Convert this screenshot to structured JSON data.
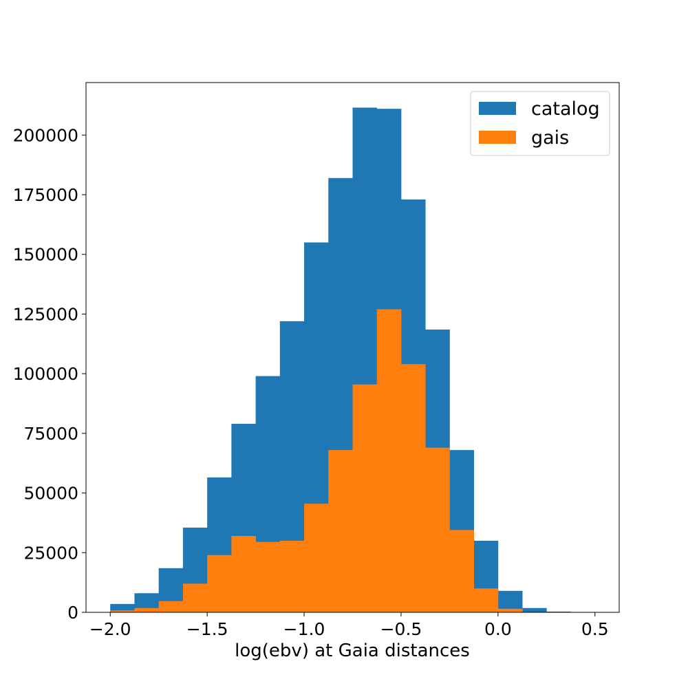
{
  "chart_data": {
    "type": "bar",
    "title": "",
    "xlabel": "log(ebv) at Gaia distances",
    "ylabel": "",
    "xlim": [
      -2.125,
      0.625
    ],
    "ylim": [
      0,
      222000
    ],
    "x_ticks": [
      -2.0,
      -1.5,
      -1.0,
      -0.5,
      0.0,
      0.5
    ],
    "x_tick_labels": [
      "−2.0",
      "−1.5",
      "−1.0",
      "−0.5",
      "0.0",
      "0.5"
    ],
    "y_ticks": [
      0,
      25000,
      50000,
      75000,
      100000,
      125000,
      150000,
      175000,
      200000
    ],
    "y_tick_labels": [
      "0",
      "25000",
      "50000",
      "75000",
      "100000",
      "125000",
      "150000",
      "175000",
      "200000"
    ],
    "bin_edges": [
      -2.0,
      -1.875,
      -1.75,
      -1.625,
      -1.5,
      -1.375,
      -1.25,
      -1.125,
      -1.0,
      -0.875,
      -0.75,
      -0.625,
      -0.5,
      -0.375,
      -0.25,
      -0.125,
      0.0,
      0.125,
      0.25,
      0.375,
      0.5
    ],
    "legend_position": "top-right",
    "grid": false,
    "series": [
      {
        "name": "catalog",
        "color": "#1f77b4",
        "values": [
          3500,
          8000,
          18500,
          35500,
          56500,
          79000,
          99000,
          122000,
          155000,
          182000,
          211500,
          211000,
          173000,
          118500,
          68000,
          30000,
          9000,
          1800,
          300,
          0
        ]
      },
      {
        "name": "gais",
        "color": "#ff7f0e",
        "values": [
          800,
          1800,
          4700,
          12000,
          24000,
          32000,
          29500,
          30000,
          45500,
          68000,
          95500,
          127000,
          104000,
          69000,
          34500,
          10000,
          1500,
          100,
          0,
          0
        ]
      }
    ]
  }
}
